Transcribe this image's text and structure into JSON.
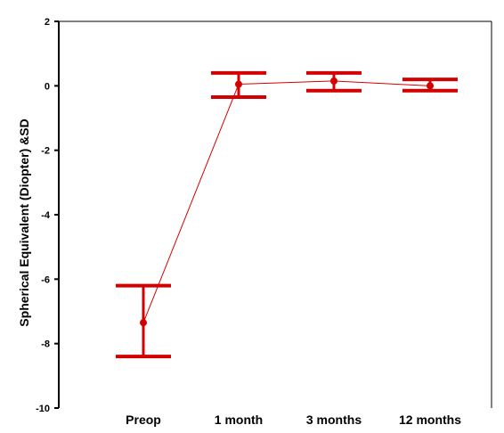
{
  "chart_data": {
    "type": "line",
    "title": "",
    "xlabel": "",
    "ylabel": "Spherical Equivalent (Diopter) &SD",
    "categories": [
      "Preop",
      "1 month",
      "3 months",
      "12 months"
    ],
    "ylim": [
      -10,
      2
    ],
    "yticks": [
      "2",
      "0",
      "-2",
      "-4",
      "-6",
      "-8",
      "-10"
    ],
    "grid": false,
    "series": [
      {
        "values": [
          -7.35,
          0.05,
          0.15,
          0.0
        ],
        "error_upper": [
          -6.2,
          0.4,
          0.4,
          0.2
        ],
        "error_lower": [
          -8.4,
          -0.35,
          -0.15,
          -0.15
        ]
      }
    ]
  },
  "colors": {
    "series": "#d40000",
    "errorbar": "#d40000",
    "axis": "#000000",
    "connector": "#333333"
  }
}
